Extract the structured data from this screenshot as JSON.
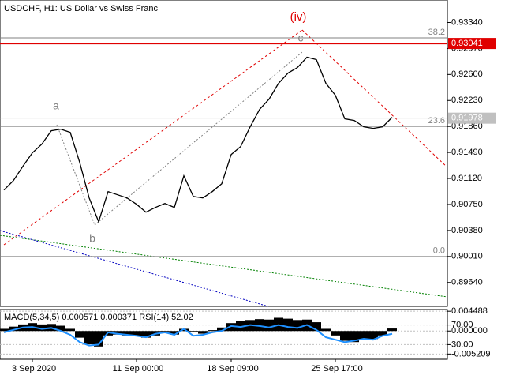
{
  "chart_data": [
    {
      "type": "line",
      "title": "USDCHF, H1:  US Dollar vs Swiss Franc",
      "categories": [
        null,
        null,
        null,
        "3 Sep 2020",
        null,
        null,
        null,
        null,
        null,
        null,
        null,
        null,
        null,
        null,
        "11 Sep 00:00",
        null,
        null,
        null,
        null,
        null,
        null,
        null,
        null,
        null,
        "18 Sep 09:00",
        null,
        null,
        null,
        null,
        null,
        null,
        null,
        null,
        null,
        null,
        "25 Sep 17:00",
        null,
        null,
        null,
        null,
        null,
        null
      ],
      "values": [
        0.90955,
        0.9109,
        0.91293,
        0.91484,
        0.91608,
        0.91799,
        0.91821,
        0.91776,
        0.91349,
        0.90843,
        0.90505,
        0.90933,
        0.90888,
        0.90843,
        0.90753,
        0.9064,
        0.90708,
        0.90764,
        0.90708,
        0.91158,
        0.90865,
        0.90843,
        0.90933,
        0.91045,
        0.91461,
        0.91574,
        0.91855,
        0.92103,
        0.92249,
        0.92474,
        0.9262,
        0.92699,
        0.92845,
        0.92811,
        0.92474,
        0.92305,
        0.91968,
        0.91945,
        0.91855,
        0.91833,
        0.91855,
        0.9199
      ],
      "color": "#000000",
      "ylim": [
        0.893,
        0.9366
      ],
      "yticks": [
        {
          "value": 0.9334,
          "label": "0.93340"
        },
        {
          "value": 0.9297,
          "label": "0.92970"
        },
        {
          "value": 0.926,
          "label": "0.92600"
        },
        {
          "value": 0.9223,
          "label": "0.92230"
        },
        {
          "value": 0.9186,
          "label": "0.91860"
        },
        {
          "value": 0.9149,
          "label": "0.91490"
        },
        {
          "value": 0.9112,
          "label": "0.91120"
        },
        {
          "value": 0.9075,
          "label": "0.90750"
        },
        {
          "value": 0.9038,
          "label": "0.90380"
        },
        {
          "value": 0.9001,
          "label": "0.90010"
        },
        {
          "value": 0.8964,
          "label": "0.89640"
        }
      ],
      "price_lines": [
        {
          "value": 0.93041,
          "label": "0.93041",
          "color": "#e00000"
        },
        {
          "value": 0.91978,
          "label": "0.91978",
          "color": "#c0c0c0"
        }
      ],
      "fib_levels": [
        {
          "value": 0.9312,
          "label": "38.2"
        },
        {
          "value": 0.9186,
          "label": "23.6"
        },
        {
          "value": 0.9001,
          "label": "0.0"
        }
      ],
      "annotations": [
        "(iv)",
        "a",
        "b",
        "c"
      ]
    },
    {
      "type": "macd",
      "title": "MACD(5,34,5) 0.000571 0.000371 RSI(14) 52.02",
      "values": [
        0.0005,
        0.001,
        0.0015,
        0.0018,
        0.0015,
        0.0016,
        0.0012,
        0.0005,
        -0.0015,
        -0.003,
        -0.0035,
        -0.001,
        -0.0008,
        -0.001,
        -0.0012,
        -0.0015,
        -0.001,
        -0.0005,
        -0.0008,
        0.0005,
        -0.0003,
        -0.0006,
        0.0002,
        0.0008,
        0.0018,
        0.0022,
        0.0025,
        0.0027,
        0.0026,
        0.003,
        0.0028,
        0.0025,
        0.0026,
        0.002,
        0.0005,
        -0.001,
        -0.0022,
        -0.0025,
        -0.002,
        -0.0018,
        -0.001,
        0.000571
      ],
      "color": "#000000",
      "rsi": [
        55,
        60,
        65,
        66,
        62,
        64,
        58,
        50,
        35,
        28,
        30,
        55,
        52,
        50,
        48,
        45,
        52,
        55,
        50,
        62,
        48,
        50,
        55,
        58,
        68,
        66,
        70,
        68,
        65,
        70,
        66,
        64,
        70,
        60,
        45,
        40,
        35,
        38,
        42,
        40,
        48,
        52.02
      ],
      "rsi_color": "#1e90ff",
      "ylim": [
        -0.0064,
        0.0047
      ],
      "yticks": [
        0.004488,
        {
          "value": 0,
          "label": "0.000000"
        },
        -0.005209
      ],
      "y2lim": [
        0,
        100
      ],
      "y2ticks": [
        {
          "value": 70,
          "label": "70.00"
        },
        {
          "value": 30,
          "label": "30.00"
        }
      ]
    }
  ]
}
